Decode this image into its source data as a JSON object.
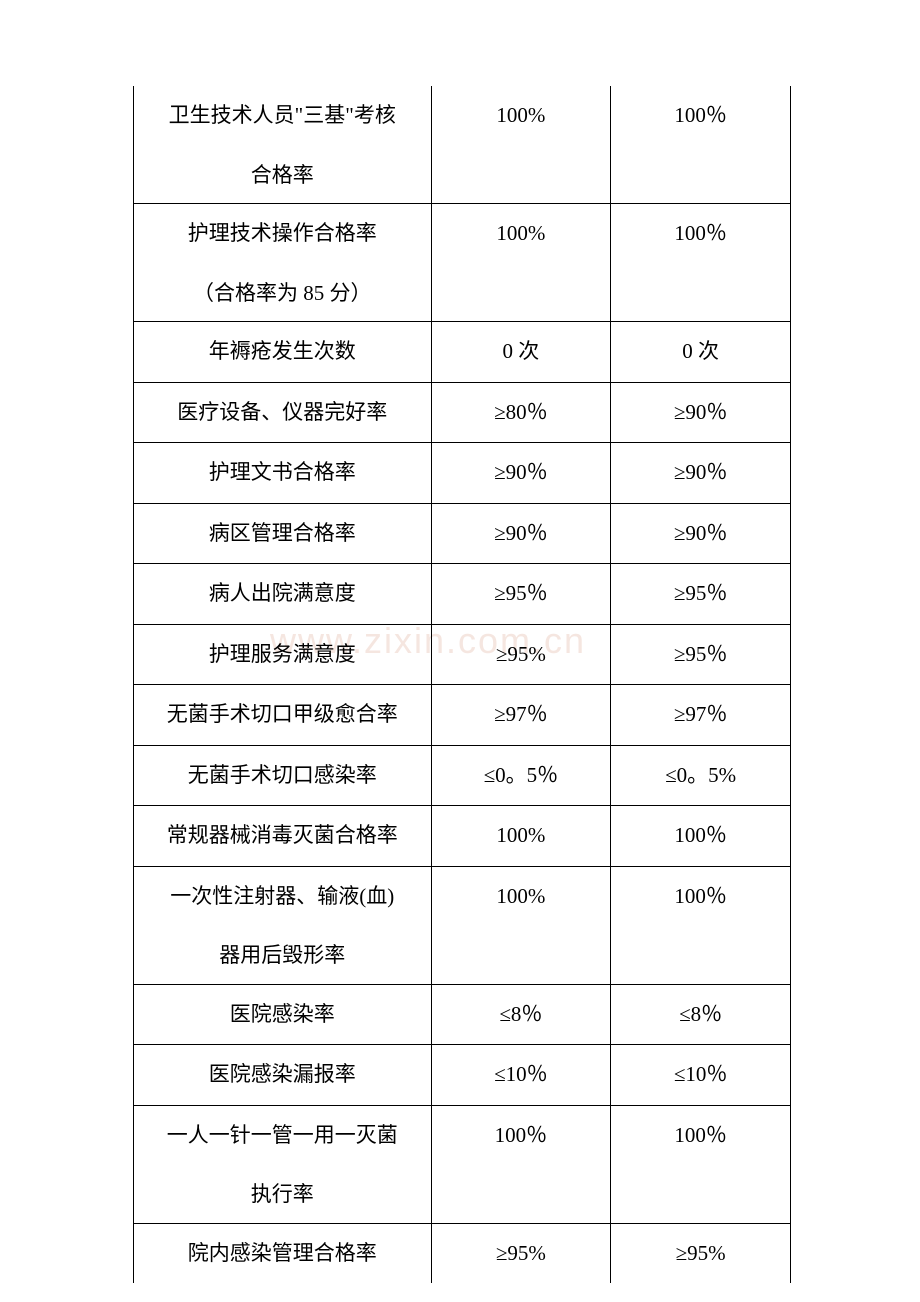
{
  "watermark": "www.zixin.com.cn",
  "table": {
    "rows": [
      {
        "label_line1": "卫生技术人员\"三基\"考核",
        "label_line2": "合格率",
        "col2": "100%",
        "col3": "100％",
        "twoLine": true
      },
      {
        "label_line1": "护理技术操作合格率",
        "label_line2": "（合格率为 85 分）",
        "col2": "100%",
        "col3": "100％",
        "twoLine": true
      },
      {
        "label_line1": "年褥疮发生次数",
        "col2": "0 次",
        "col3": "0 次",
        "twoLine": false
      },
      {
        "label_line1": "医疗设备、仪器完好率",
        "col2": "≥80％",
        "col3": "≥90％",
        "twoLine": false
      },
      {
        "label_line1": "护理文书合格率",
        "col2": "≥90％",
        "col3": "≥90％",
        "twoLine": false
      },
      {
        "label_line1": "病区管理合格率",
        "col2": "≥90％",
        "col3": "≥90％",
        "twoLine": false
      },
      {
        "label_line1": "病人出院满意度",
        "col2": "≥95％",
        "col3": "≥95％",
        "twoLine": false
      },
      {
        "label_line1": "护理服务满意度",
        "col2": "≥95%",
        "col3": "≥95％",
        "twoLine": false
      },
      {
        "label_line1": "无菌手术切口甲级愈合率",
        "col2": "≥97％",
        "col3": "≥97％",
        "twoLine": false
      },
      {
        "label_line1": "无菌手术切口感染率",
        "col2": "≤0。5％",
        "col3": "≤0。5%",
        "twoLine": false
      },
      {
        "label_line1": "常规器械消毒灭菌合格率",
        "col2": "100%",
        "col3": "100％",
        "twoLine": false
      },
      {
        "label_line1": "一次性注射器、输液(血)",
        "label_line2": "器用后毁形率",
        "col2": "100%",
        "col3": "100％",
        "twoLine": true
      },
      {
        "label_line1": "医院感染率",
        "col2": "≤8％",
        "col3": "≤8％",
        "twoLine": false
      },
      {
        "label_line1": "医院感染漏报率",
        "col2": "≤10％",
        "col3": "≤10％",
        "twoLine": false
      },
      {
        "label_line1": "一人一针一管一用一灭菌",
        "label_line2": "执行率",
        "col2": "100％",
        "col3": "100％",
        "twoLine": true
      },
      {
        "label_line1": "院内感染管理合格率",
        "col2": "≥95%",
        "col3": "≥95%",
        "twoLine": false
      }
    ],
    "styling": {
      "border_color": "#000000",
      "outer_border_width": 1.5,
      "inner_border_width": 1,
      "font_size": 21,
      "text_color": "#000000",
      "background_color": "#ffffff",
      "col1_width": 298,
      "col2_width": 180,
      "col3_width": 180,
      "font_family": "SimSun"
    }
  }
}
